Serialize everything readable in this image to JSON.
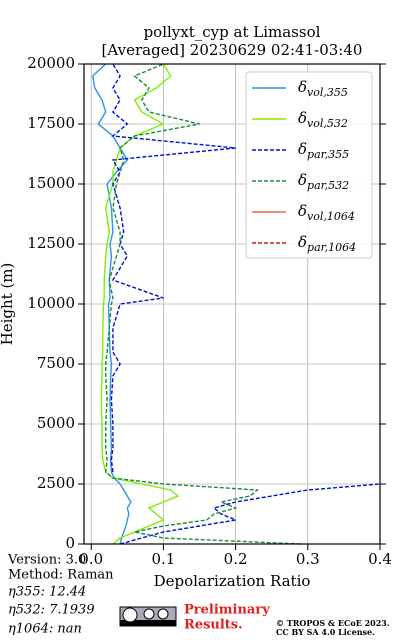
{
  "chart_data": {
    "type": "line",
    "title": "pollyxt_cyp at Limassol",
    "subtitle": "[Averaged] 20230629 02:41-03:40",
    "x_label": "Depolarization Ratio",
    "y_label": "Height (m)",
    "y": [
      0,
      250,
      500,
      750,
      1000,
      1250,
      1500,
      1750,
      2000,
      2250,
      2500,
      2750,
      3000,
      3500,
      4000,
      5000,
      6000,
      7000,
      7500,
      8000,
      9000,
      10000,
      10250,
      11000,
      12000,
      12500,
      13000,
      14000,
      15000,
      15500,
      16000,
      16500,
      17000,
      17500,
      18000,
      18500,
      19000,
      19500,
      20000
    ],
    "series": [
      {
        "name": "δvol,355",
        "color": "#2a95e6",
        "dash": false,
        "values": [
          0.04,
          0.042,
          0.045,
          0.048,
          0.05,
          0.052,
          0.05,
          0.055,
          0.05,
          0.045,
          0.04,
          0.032,
          0.028,
          0.027,
          0.028,
          0.027,
          0.026,
          0.027,
          0.028,
          0.026,
          0.025,
          0.024,
          0.026,
          0.025,
          0.028,
          0.026,
          0.03,
          0.028,
          0.022,
          0.035,
          0.05,
          0.04,
          0.03,
          0.01,
          0.02,
          0.015,
          0.005,
          0.002,
          0.02
        ]
      },
      {
        "name": "δvol,532",
        "color": "#7cf000",
        "dash": false,
        "values": [
          0.03,
          0.04,
          0.06,
          0.08,
          0.1,
          0.09,
          0.08,
          0.1,
          0.12,
          0.11,
          0.07,
          0.03,
          0.02,
          0.016,
          0.015,
          0.015,
          0.014,
          0.015,
          0.015,
          0.016,
          0.016,
          0.017,
          0.018,
          0.018,
          0.02,
          0.022,
          0.025,
          0.02,
          0.03,
          0.03,
          0.035,
          0.04,
          0.06,
          0.1,
          0.07,
          0.06,
          0.09,
          0.11,
          0.1
        ]
      },
      {
        "name": "δpar,355",
        "color": "#0010d0",
        "dash": true,
        "values": [
          0.04,
          0.07,
          0.1,
          0.15,
          0.2,
          0.18,
          0.17,
          0.2,
          0.25,
          0.3,
          0.4,
          null,
          0.03,
          0.028,
          0.03,
          0.03,
          0.028,
          0.03,
          0.04,
          0.03,
          0.03,
          0.04,
          0.1,
          0.03,
          0.05,
          0.04,
          0.045,
          0.04,
          0.03,
          0.04,
          0.03,
          0.2,
          0.03,
          0.05,
          0.03,
          0.04,
          0.03,
          0.04,
          0.03
        ]
      },
      {
        "name": "δpar,532",
        "color": "#1a8a3a",
        "dash": true,
        "values": [
          0.29,
          0.1,
          0.06,
          0.1,
          0.16,
          0.17,
          0.2,
          0.18,
          0.22,
          0.23,
          0.1,
          0.03,
          0.02,
          0.022,
          0.02,
          0.02,
          0.022,
          0.02,
          0.02,
          0.022,
          0.025,
          0.028,
          0.03,
          0.025,
          0.035,
          0.04,
          0.04,
          0.03,
          0.035,
          0.04,
          0.045,
          0.04,
          0.06,
          0.15,
          0.08,
          0.07,
          0.08,
          0.06,
          0.1
        ]
      },
      {
        "name": "δvol,1064",
        "color": "#f4623a",
        "dash": false,
        "values": [
          null,
          null,
          null,
          null,
          null,
          null,
          null,
          null,
          null,
          null,
          null,
          null,
          null,
          null,
          null,
          null,
          null,
          null,
          null,
          null,
          null,
          null,
          null,
          null,
          null,
          null,
          null,
          null,
          null,
          null,
          null,
          null,
          null,
          null,
          null,
          null,
          null,
          null,
          null
        ]
      },
      {
        "name": "δpar,1064",
        "color": "#d42020",
        "dash": true,
        "values": [
          null,
          null,
          null,
          null,
          null,
          null,
          null,
          null,
          null,
          null,
          null,
          null,
          null,
          null,
          null,
          null,
          null,
          null,
          null,
          null,
          null,
          null,
          null,
          null,
          null,
          null,
          null,
          null,
          null,
          null,
          null,
          null,
          null,
          null,
          null,
          null,
          null,
          null,
          null
        ]
      }
    ],
    "xlim": [
      -0.01,
      0.4
    ],
    "xticks": [
      {
        "value": 0,
        "label": "0.0"
      },
      0.1,
      0.2,
      0.3,
      0.4
    ],
    "ylim": [
      0,
      20000
    ],
    "yticks": [
      0,
      2500,
      5000,
      7500,
      10000,
      12500,
      15000,
      17500,
      20000
    ],
    "grid": true,
    "legend": "upper right"
  },
  "footer": {
    "version": "Version: 3.0",
    "method": "Method: Raman",
    "eta355": "η355:  12.44",
    "eta532": "η532: 7.1939",
    "eta1064": "η1064:    nan",
    "preliminary": "Preliminary",
    "results": "Results.",
    "copyright": "© TROPOS & ECoE 2023.",
    "license": "CC BY SA 4.0 License."
  }
}
